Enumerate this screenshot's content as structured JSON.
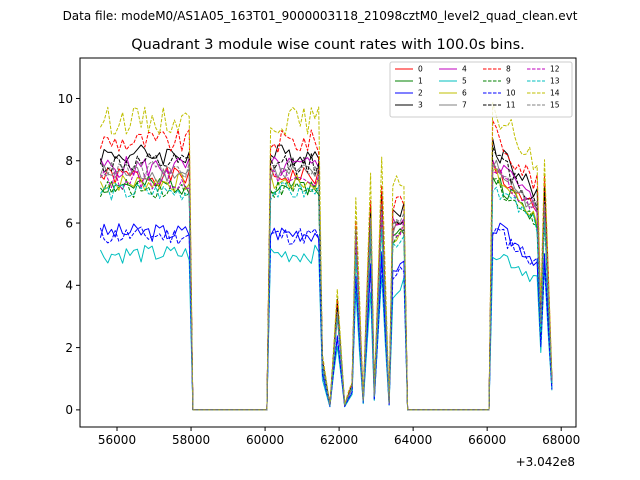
{
  "figure": {
    "suptitle": "Data file: modeM0/AS1A05_163T01_9000003118_21098cztM0_level2_quad_clean.evt"
  },
  "chart_data": {
    "type": "line",
    "title": "Quadrant 3 module wise count rates with 100.0s bins.",
    "xlabel": "",
    "ylabel": "",
    "x_offset_label": "+3.042e8",
    "xlim": [
      55000,
      68400
    ],
    "ylim": [
      -0.55,
      11.3
    ],
    "xticks": [
      56000,
      58000,
      60000,
      62000,
      64000,
      66000,
      68000
    ],
    "yticks": [
      0,
      2,
      4,
      6,
      8,
      10
    ],
    "xtick_labels": [
      "56000",
      "58000",
      "60000",
      "62000",
      "64000",
      "66000",
      "68000"
    ],
    "ytick_labels": [
      "0",
      "2",
      "4",
      "6",
      "8",
      "10"
    ],
    "grid": false,
    "legend_position": "top-right",
    "anchors": {
      "x": [
        55550,
        57950,
        58050,
        60050,
        60150,
        61450,
        61550,
        61750,
        61950,
        62150,
        62350,
        62450,
        62650,
        62850,
        62950,
        63150,
        63350,
        63450,
        63750,
        63850,
        66050,
        66150,
        67350,
        67450,
        67550,
        67750
      ],
      "rate": [
        1.0,
        1.0,
        0.0,
        0.0,
        1.0,
        1.0,
        0.2,
        0.02,
        0.42,
        0.02,
        0.1,
        0.74,
        0.04,
        0.8,
        0.06,
        0.85,
        0.03,
        0.76,
        0.8,
        0.0,
        0.0,
        1.04,
        0.84,
        0.36,
        0.88,
        0.12
      ]
    },
    "series": [
      {
        "name": "0",
        "color": "#ff0000",
        "style": "solid",
        "level": 7.5,
        "amp": 0.3,
        "seed": 1
      },
      {
        "name": "1",
        "color": "#008000",
        "style": "solid",
        "level": 7.2,
        "amp": 0.3,
        "seed": 2
      },
      {
        "name": "2",
        "color": "#0000ff",
        "style": "solid",
        "level": 5.7,
        "amp": 0.3,
        "seed": 3
      },
      {
        "name": "3",
        "color": "#000000",
        "style": "solid",
        "level": 8.2,
        "amp": 0.35,
        "seed": 4
      },
      {
        "name": "4",
        "color": "#bf00bf",
        "style": "solid",
        "level": 7.8,
        "amp": 0.35,
        "seed": 5
      },
      {
        "name": "5",
        "color": "#00bfbf",
        "style": "solid",
        "level": 5.0,
        "amp": 0.3,
        "seed": 6
      },
      {
        "name": "6",
        "color": "#bfbf00",
        "style": "solid",
        "level": 7.3,
        "amp": 0.3,
        "seed": 7
      },
      {
        "name": "7",
        "color": "#808080",
        "style": "solid",
        "level": 7.6,
        "amp": 0.3,
        "seed": 8
      },
      {
        "name": "8",
        "color": "#ff0000",
        "style": "dashed",
        "level": 8.6,
        "amp": 0.4,
        "seed": 9
      },
      {
        "name": "9",
        "color": "#008000",
        "style": "dashed",
        "level": 7.1,
        "amp": 0.3,
        "seed": 10
      },
      {
        "name": "10",
        "color": "#0000ff",
        "style": "dashed",
        "level": 5.6,
        "amp": 0.3,
        "seed": 11
      },
      {
        "name": "11",
        "color": "#000000",
        "style": "dashed",
        "level": 7.9,
        "amp": 0.35,
        "seed": 12
      },
      {
        "name": "12",
        "color": "#bf00bf",
        "style": "dashed",
        "level": 7.4,
        "amp": 0.35,
        "seed": 13
      },
      {
        "name": "13",
        "color": "#00bfbf",
        "style": "dashed",
        "level": 7.0,
        "amp": 0.3,
        "seed": 14
      },
      {
        "name": "14",
        "color": "#bfbf00",
        "style": "dashed",
        "level": 9.3,
        "amp": 0.45,
        "seed": 15
      },
      {
        "name": "15",
        "color": "#808080",
        "style": "dashed",
        "level": 7.7,
        "amp": 0.3,
        "seed": 16
      }
    ]
  }
}
